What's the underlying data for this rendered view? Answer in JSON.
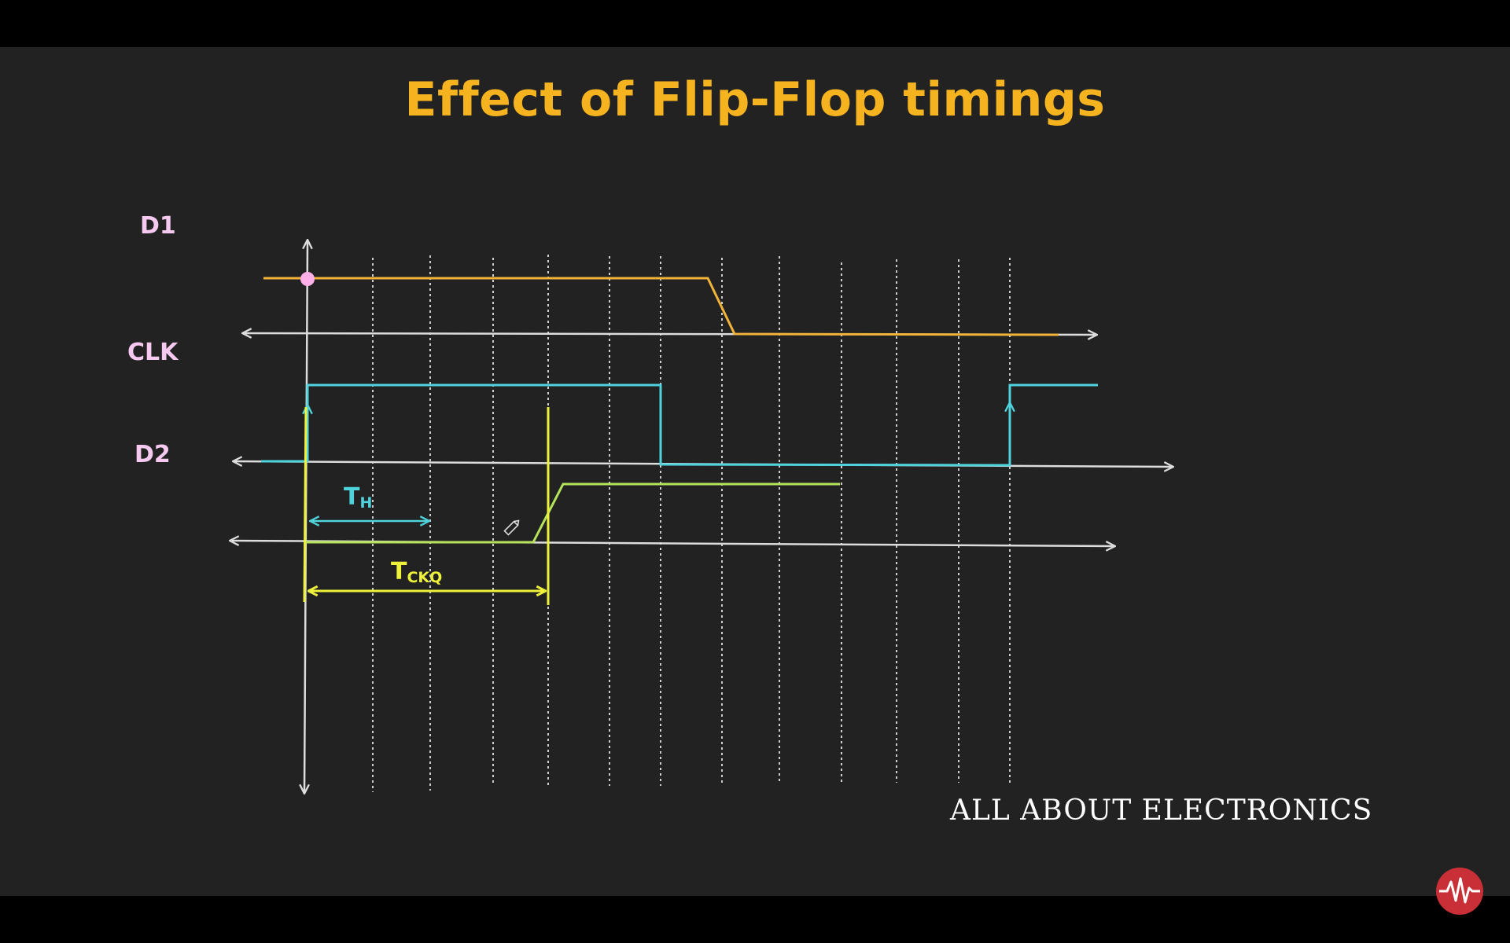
{
  "slide": {
    "title": "Effect of Flip-Flop timings",
    "brand": "ALL ABOUT ELECTRONICS",
    "background": "#222222",
    "title_color": "#f5b320"
  },
  "signals": {
    "d1": {
      "label": "D1",
      "color": "#f2b33a"
    },
    "clk": {
      "label": "CLK",
      "color": "#4fd3dc"
    },
    "d2": {
      "label": "D2",
      "color": "#b5e35a"
    }
  },
  "annotations": {
    "hold": {
      "main": "T",
      "sub": "H",
      "color": "#4fd3dc"
    },
    "ckq": {
      "main": "T",
      "sub": "CKQ",
      "color": "#eef23a"
    }
  },
  "icons": {
    "cursor": "pencil-icon",
    "logo": "waveform-logo-icon"
  },
  "colors": {
    "axis": "#dddddd",
    "label": "#f6c9f0",
    "marker": "#ffb0e8"
  }
}
